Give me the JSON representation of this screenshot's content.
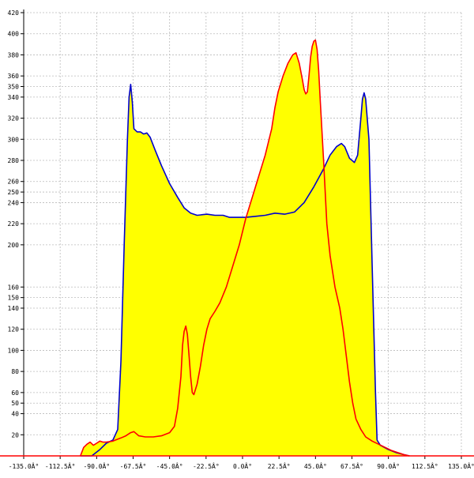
{
  "chart_data": {
    "type": "area",
    "title": "",
    "xlabel": "",
    "ylabel": "",
    "xlim": [
      -135,
      135
    ],
    "ylim": [
      0,
      420
    ],
    "grid": true,
    "x_ticks": [
      {
        "value": -135,
        "label": "-135.0Â°"
      },
      {
        "value": -112.5,
        "label": "-112.5Â°"
      },
      {
        "value": -90,
        "label": "-90.0Â°"
      },
      {
        "value": -67.5,
        "label": "-67.5Â°"
      },
      {
        "value": -45,
        "label": "-45.0Â°"
      },
      {
        "value": -22.5,
        "label": "-22.5Â°"
      },
      {
        "value": 0,
        "label": "0.0Â°"
      },
      {
        "value": 22.5,
        "label": "22.5Â°"
      },
      {
        "value": 45,
        "label": "45.0Â°"
      },
      {
        "value": 67.5,
        "label": "67.5Â°"
      },
      {
        "value": 90,
        "label": "90.0Â°"
      },
      {
        "value": 112.5,
        "label": "112.5Â°"
      },
      {
        "value": 135,
        "label": "135.0Â°"
      }
    ],
    "y_ticks": [
      20,
      40,
      50,
      60,
      80,
      100,
      120,
      140,
      150,
      160,
      200,
      220,
      240,
      250,
      260,
      280,
      300,
      320,
      340,
      350,
      360,
      380,
      400,
      420
    ],
    "fill_color": "#ffff00",
    "baseline_color": "#ff0000",
    "grid_color": "#bbbbbb",
    "series": [
      {
        "color": "#0000cc",
        "points": [
          [
            -100,
            0
          ],
          [
            -93,
            0
          ],
          [
            -88,
            6
          ],
          [
            -84,
            12
          ],
          [
            -80,
            15
          ],
          [
            -77,
            25
          ],
          [
            -75,
            90
          ],
          [
            -73,
            200
          ],
          [
            -71,
            300
          ],
          [
            -70,
            340
          ],
          [
            -69,
            352
          ],
          [
            -68,
            335
          ],
          [
            -67,
            310
          ],
          [
            -65,
            307
          ],
          [
            -63,
            307
          ],
          [
            -61,
            305
          ],
          [
            -59,
            306
          ],
          [
            -57,
            302
          ],
          [
            -54,
            290
          ],
          [
            -50,
            275
          ],
          [
            -45,
            258
          ],
          [
            -40,
            245
          ],
          [
            -36,
            235
          ],
          [
            -32,
            230
          ],
          [
            -28,
            228
          ],
          [
            -22,
            229
          ],
          [
            -17,
            228
          ],
          [
            -12,
            228
          ],
          [
            -8,
            226
          ],
          [
            -2,
            226
          ],
          [
            2,
            226
          ],
          [
            8,
            227
          ],
          [
            14,
            228
          ],
          [
            20,
            230
          ],
          [
            26,
            229
          ],
          [
            32,
            231
          ],
          [
            38,
            240
          ],
          [
            44,
            255
          ],
          [
            50,
            272
          ],
          [
            54,
            285
          ],
          [
            58,
            293
          ],
          [
            61,
            296
          ],
          [
            63,
            293
          ],
          [
            66,
            282
          ],
          [
            69,
            278
          ],
          [
            71,
            285
          ],
          [
            73,
            320
          ],
          [
            74,
            338
          ],
          [
            75,
            344
          ],
          [
            76,
            338
          ],
          [
            78,
            300
          ],
          [
            80,
            180
          ],
          [
            82,
            60
          ],
          [
            83,
            15
          ],
          [
            85,
            10
          ],
          [
            90,
            6
          ],
          [
            95,
            3
          ],
          [
            100,
            1
          ],
          [
            103,
            0
          ]
        ]
      },
      {
        "color": "#ff0000",
        "points": [
          [
            -100,
            0
          ],
          [
            -98,
            8
          ],
          [
            -96,
            11
          ],
          [
            -94,
            13
          ],
          [
            -92,
            10
          ],
          [
            -90,
            12
          ],
          [
            -88,
            14
          ],
          [
            -86,
            13
          ],
          [
            -84,
            13
          ],
          [
            -80,
            14
          ],
          [
            -75,
            17
          ],
          [
            -72,
            19
          ],
          [
            -69,
            22
          ],
          [
            -67,
            23
          ],
          [
            -64,
            19
          ],
          [
            -60,
            18
          ],
          [
            -55,
            18
          ],
          [
            -50,
            19
          ],
          [
            -45,
            22
          ],
          [
            -42,
            28
          ],
          [
            -40,
            45
          ],
          [
            -38,
            75
          ],
          [
            -37,
            105
          ],
          [
            -36,
            118
          ],
          [
            -35,
            123
          ],
          [
            -34,
            115
          ],
          [
            -33,
            95
          ],
          [
            -32,
            75
          ],
          [
            -31,
            60
          ],
          [
            -30,
            58
          ],
          [
            -28,
            68
          ],
          [
            -26,
            85
          ],
          [
            -24,
            105
          ],
          [
            -22,
            120
          ],
          [
            -20,
            130
          ],
          [
            -17,
            137
          ],
          [
            -14,
            145
          ],
          [
            -10,
            160
          ],
          [
            -6,
            180
          ],
          [
            -2,
            200
          ],
          [
            2,
            225
          ],
          [
            6,
            245
          ],
          [
            10,
            265
          ],
          [
            14,
            285
          ],
          [
            18,
            310
          ],
          [
            20,
            330
          ],
          [
            22,
            345
          ],
          [
            25,
            360
          ],
          [
            28,
            372
          ],
          [
            31,
            380
          ],
          [
            33,
            382
          ],
          [
            35,
            372
          ],
          [
            37,
            356
          ],
          [
            38,
            347
          ],
          [
            39,
            343
          ],
          [
            40,
            345
          ],
          [
            41,
            360
          ],
          [
            42,
            378
          ],
          [
            43,
            388
          ],
          [
            44,
            393
          ],
          [
            45,
            394
          ],
          [
            46,
            385
          ],
          [
            47,
            365
          ],
          [
            48,
            335
          ],
          [
            50,
            280
          ],
          [
            52,
            220
          ],
          [
            54,
            190
          ],
          [
            57,
            160
          ],
          [
            60,
            140
          ],
          [
            62,
            120
          ],
          [
            64,
            95
          ],
          [
            66,
            70
          ],
          [
            68,
            50
          ],
          [
            70,
            35
          ],
          [
            73,
            25
          ],
          [
            76,
            18
          ],
          [
            80,
            14
          ],
          [
            84,
            11
          ],
          [
            88,
            8
          ],
          [
            92,
            5
          ],
          [
            96,
            3
          ],
          [
            100,
            1
          ],
          [
            103,
            0
          ]
        ]
      }
    ]
  }
}
